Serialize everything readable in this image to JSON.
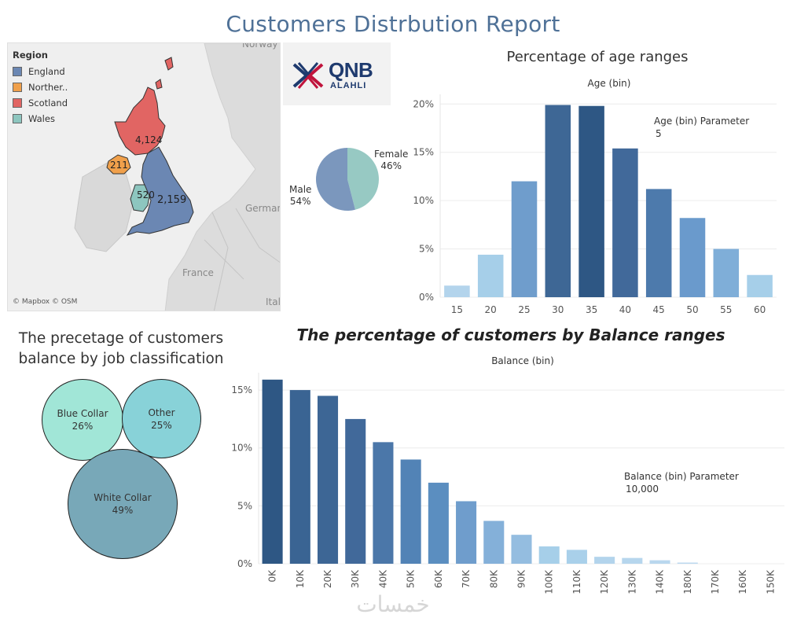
{
  "title": "Customers  Distrbution Report",
  "map": {
    "legend_title": "Region",
    "regions": [
      {
        "name": "England",
        "color": "#6b87b3",
        "value": "2,159"
      },
      {
        "name": "Norther..",
        "color": "#f0a04b",
        "value": "211"
      },
      {
        "name": "Scotland",
        "color": "#e16563",
        "value": "4,124"
      },
      {
        "name": "Wales",
        "color": "#8dc6bf",
        "value": "520"
      }
    ],
    "place_labels": [
      "Norway",
      "Germany",
      "France",
      "Italy"
    ],
    "attribution": "© Mapbox © OSM"
  },
  "logo": {
    "text": "QNB",
    "subtext": "ALAHLI"
  },
  "gender_pie": {
    "slices": [
      {
        "name": "Female",
        "pct": "46%",
        "value": 46,
        "color": "#97c9c3"
      },
      {
        "name": "Male",
        "pct": "54%",
        "value": 54,
        "color": "#7b97bd"
      }
    ]
  },
  "job_bubbles": {
    "title_line1": "The precetage of customers",
    "title_line2": "balance by job classification",
    "items": [
      {
        "name": "Blue Collar",
        "pct": "26%",
        "color": "#a1e6d7"
      },
      {
        "name": "Other",
        "pct": "25%",
        "color": "#88d2d8"
      },
      {
        "name": "White Collar",
        "pct": "49%",
        "color": "#78a8b8"
      }
    ]
  },
  "age_chart": {
    "title": "Percentage of age ranges",
    "subtitle": "Age (bin)",
    "param_label": "Age (bin) Parameter",
    "param_value": "5"
  },
  "balance_chart": {
    "title": "The percentage of customers by Balance ranges",
    "subtitle": "Balance (bin)",
    "param_label": "Balance (bin) Parameter",
    "param_value": "10,000"
  },
  "watermark": "خمسات",
  "chart_data": [
    {
      "type": "bar",
      "title": "Percentage of age ranges",
      "xlabel": "Age (bin)",
      "categories": [
        "15",
        "20",
        "25",
        "30",
        "35",
        "40",
        "45",
        "50",
        "55",
        "60"
      ],
      "values": [
        1.2,
        4.4,
        12.0,
        19.9,
        19.8,
        15.4,
        11.2,
        8.2,
        5.0,
        2.3
      ],
      "ylim": [
        0,
        21
      ],
      "yticks": [
        0,
        5,
        10,
        15,
        20
      ],
      "ytick_labels": [
        "0%",
        "5%",
        "10%",
        "15%",
        "20%"
      ],
      "colors": [
        "#b3d4ec",
        "#a6cfe9",
        "#6f9dcc",
        "#3e6795",
        "#2e5784",
        "#41699a",
        "#4d7aac",
        "#6a9acc",
        "#7faed8",
        "#a6cfe9"
      ],
      "grid": true
    },
    {
      "type": "bar",
      "title": "The percentage of customers by Balance ranges",
      "xlabel": "Balance (bin)",
      "categories": [
        "0K",
        "10K",
        "20K",
        "30K",
        "40K",
        "50K",
        "60K",
        "70K",
        "80K",
        "90K",
        "100K",
        "110K",
        "120K",
        "130K",
        "140K",
        "180K",
        "170K",
        "160K",
        "150K"
      ],
      "values": [
        15.9,
        15.0,
        14.5,
        12.5,
        10.5,
        9.0,
        7.0,
        5.4,
        3.7,
        2.5,
        1.5,
        1.2,
        0.6,
        0.5,
        0.3,
        0.1,
        0.0,
        0.0,
        0.0
      ],
      "ylim": [
        0,
        16.5
      ],
      "yticks": [
        0,
        5,
        10,
        15
      ],
      "ytick_labels": [
        "0%",
        "5%",
        "10%",
        "15%"
      ],
      "colors": [
        "#2e5784",
        "#3a6493",
        "#3d6695",
        "#41699a",
        "#4b77a9",
        "#5283b6",
        "#5b8ec0",
        "#6f9dcc",
        "#84b0d9",
        "#94bde0",
        "#a6cfe9",
        "#a9d0ea",
        "#b3d4ec",
        "#b6d6ed",
        "#b9d7ee",
        "#bcd9ef",
        "#bcd9ef",
        "#bcd9ef",
        "#bcd9ef"
      ],
      "grid": true
    }
  ]
}
